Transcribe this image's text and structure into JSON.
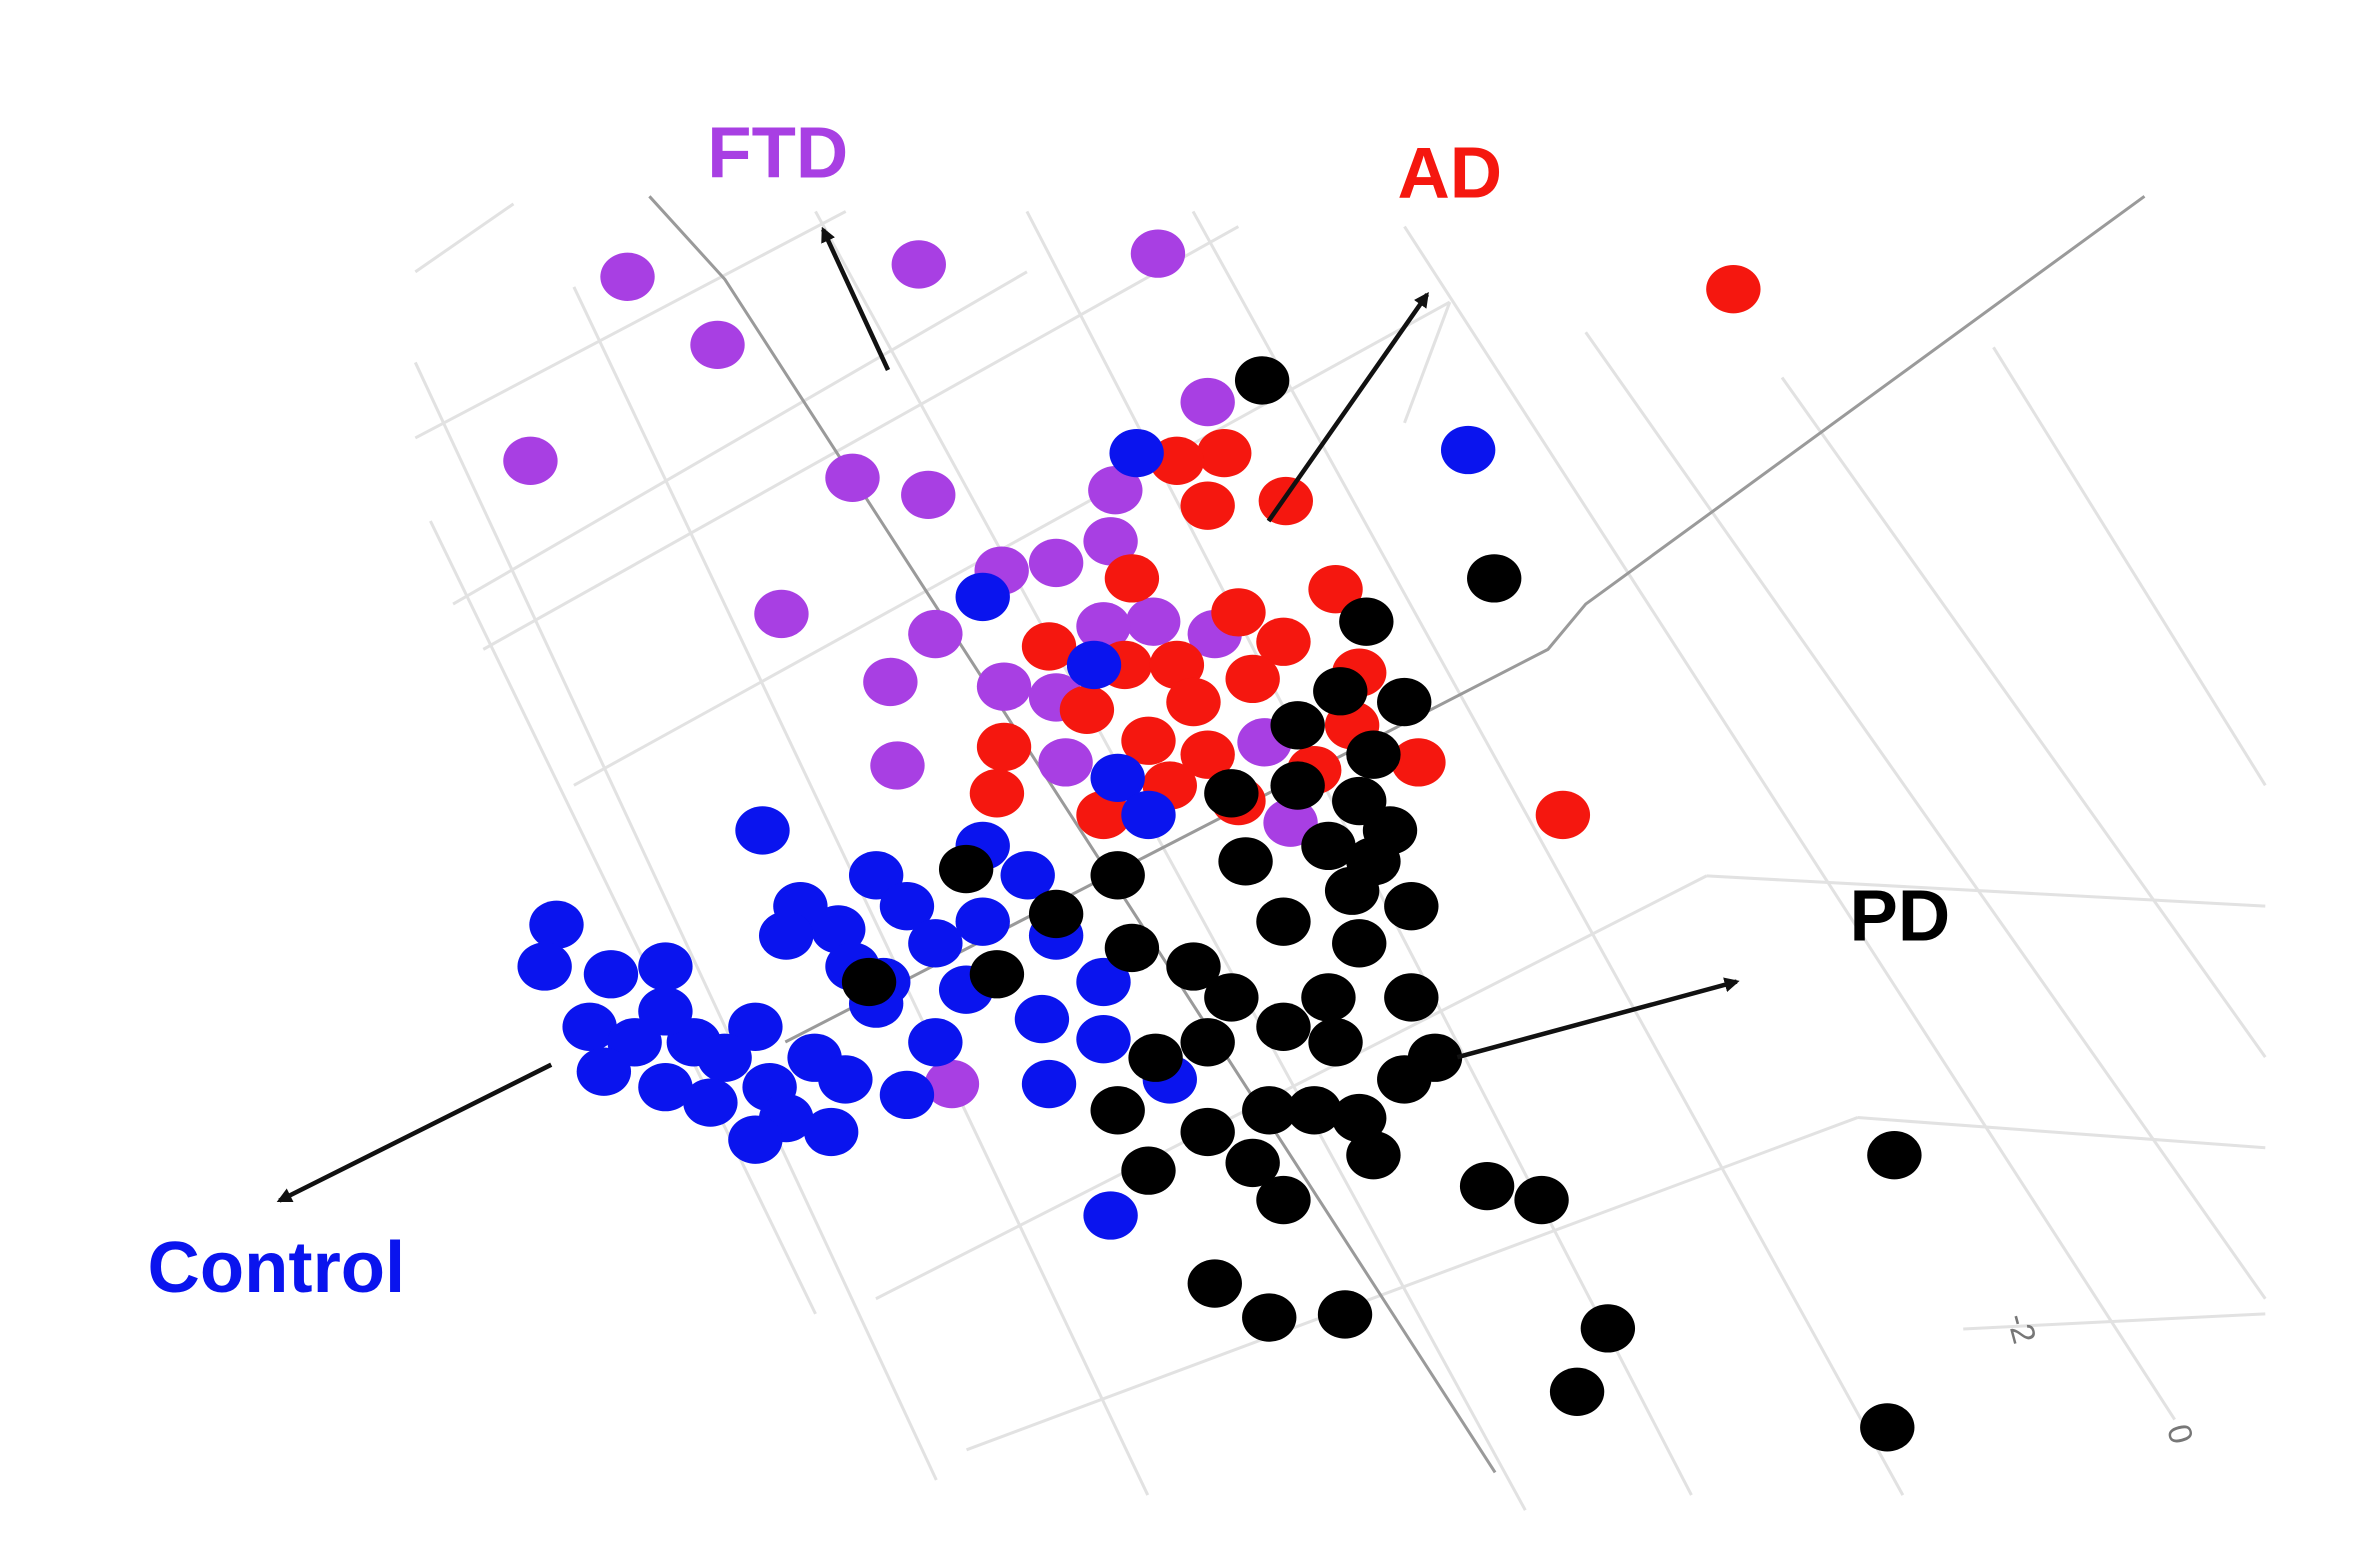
{
  "chart_data": {
    "type": "scatter",
    "xlim": [
      0,
      100
    ],
    "ylim": [
      0,
      100
    ],
    "zticks": [
      -2,
      0
    ],
    "series": [
      {
        "name": "FTD",
        "color": "#a83fe3",
        "x": [
          26.5,
          38.8,
          48.9,
          30.3,
          22.4,
          36.0,
          39.2,
          51.0,
          47.1,
          46.9,
          42.3,
          44.6,
          33.0,
          39.5,
          48.7,
          46.6,
          51.3,
          37.6,
          42.4,
          44.6,
          37.9,
          45.0,
          53.4,
          54.5,
          40.2
        ],
        "y": [
          82.1,
          82.9,
          83.6,
          77.7,
          70.2,
          69.1,
          68.0,
          74.0,
          68.3,
          65.0,
          63.1,
          63.6,
          60.3,
          59.0,
          59.8,
          59.5,
          59.0,
          55.9,
          55.6,
          54.9,
          50.5,
          50.7,
          52.0,
          46.8,
          29.9
        ]
      },
      {
        "name": "AD",
        "color": "#f5170f",
        "x": [
          73.2,
          51.7,
          49.7,
          51.0,
          54.3,
          47.8,
          56.4,
          52.3,
          44.3,
          47.5,
          54.2,
          49.7,
          57.4,
          52.9,
          45.9,
          50.4,
          42.4,
          48.5,
          51.0,
          59.9,
          55.5,
          42.1,
          46.6,
          52.3,
          66.0,
          57.1,
          49.4
        ],
        "y": [
          81.3,
          70.7,
          70.2,
          67.3,
          67.6,
          62.6,
          61.9,
          60.4,
          58.2,
          57.0,
          58.5,
          57.0,
          56.5,
          56.1,
          54.1,
          54.6,
          51.7,
          52.1,
          51.2,
          50.7,
          50.2,
          48.7,
          47.3,
          48.2,
          47.3,
          53.1,
          49.2
        ]
      },
      {
        "name": "Control",
        "color": "#0a14ee",
        "x": [
          48.0,
          62.0,
          41.5,
          46.2,
          47.2,
          32.2,
          23.5,
          23.0,
          25.8,
          28.1,
          41.5,
          37.0,
          38.3,
          33.8,
          35.4,
          39.5,
          43.4,
          44.6,
          33.2,
          37.3,
          40.8,
          44.0,
          46.6,
          24.9,
          26.8,
          29.3,
          31.9,
          30.6,
          34.4,
          25.5,
          28.1,
          30.0,
          32.5,
          35.7,
          38.3,
          33.2,
          35.1,
          31.9,
          37.0,
          39.5,
          44.3,
          46.6,
          49.4,
          46.9,
          48.5,
          28.1,
          36.0,
          41.5
        ],
        "y": [
          70.7,
          70.9,
          61.4,
          57.0,
          49.7,
          46.3,
          40.2,
          37.5,
          37.0,
          37.5,
          45.3,
          43.4,
          41.4,
          41.4,
          39.9,
          39.0,
          43.4,
          39.5,
          39.5,
          36.5,
          36.0,
          34.1,
          36.5,
          33.6,
          32.6,
          32.6,
          33.6,
          31.6,
          31.6,
          30.7,
          29.7,
          28.7,
          29.7,
          30.2,
          29.2,
          27.7,
          26.8,
          26.3,
          35.1,
          32.6,
          29.9,
          32.8,
          30.2,
          21.4,
          47.3,
          34.6,
          37.5,
          40.4
        ]
      },
      {
        "name": "PD",
        "color": "#000000",
        "x": [
          53.3,
          63.1,
          57.7,
          56.6,
          59.3,
          54.8,
          58.0,
          52.0,
          57.4,
          52.6,
          56.1,
          58.7,
          47.2,
          40.8,
          44.6,
          57.1,
          59.6,
          54.2,
          47.8,
          50.4,
          57.4,
          36.7,
          42.1,
          52.0,
          54.2,
          56.1,
          59.6,
          48.8,
          51.0,
          56.4,
          60.6,
          59.3,
          47.2,
          51.0,
          53.6,
          55.5,
          57.4,
          52.9,
          58.0,
          48.5,
          54.2,
          62.8,
          65.1,
          80.0,
          51.3,
          53.6,
          56.8,
          67.9,
          66.6,
          79.7,
          54.8,
          58.0
        ],
        "y": [
          75.4,
          62.6,
          59.8,
          55.3,
          54.6,
          53.1,
          51.2,
          48.7,
          48.2,
          44.3,
          45.3,
          46.3,
          43.4,
          43.8,
          40.9,
          42.4,
          41.4,
          40.4,
          38.7,
          37.5,
          39.0,
          36.5,
          37.0,
          35.5,
          33.6,
          35.5,
          35.5,
          31.6,
          32.6,
          32.6,
          31.6,
          30.2,
          28.2,
          26.8,
          28.2,
          28.2,
          27.7,
          24.8,
          25.3,
          24.3,
          22.4,
          23.3,
          22.4,
          25.3,
          17.0,
          14.8,
          15.0,
          14.1,
          10.0,
          7.7,
          49.2,
          44.3
        ]
      }
    ]
  }
}
